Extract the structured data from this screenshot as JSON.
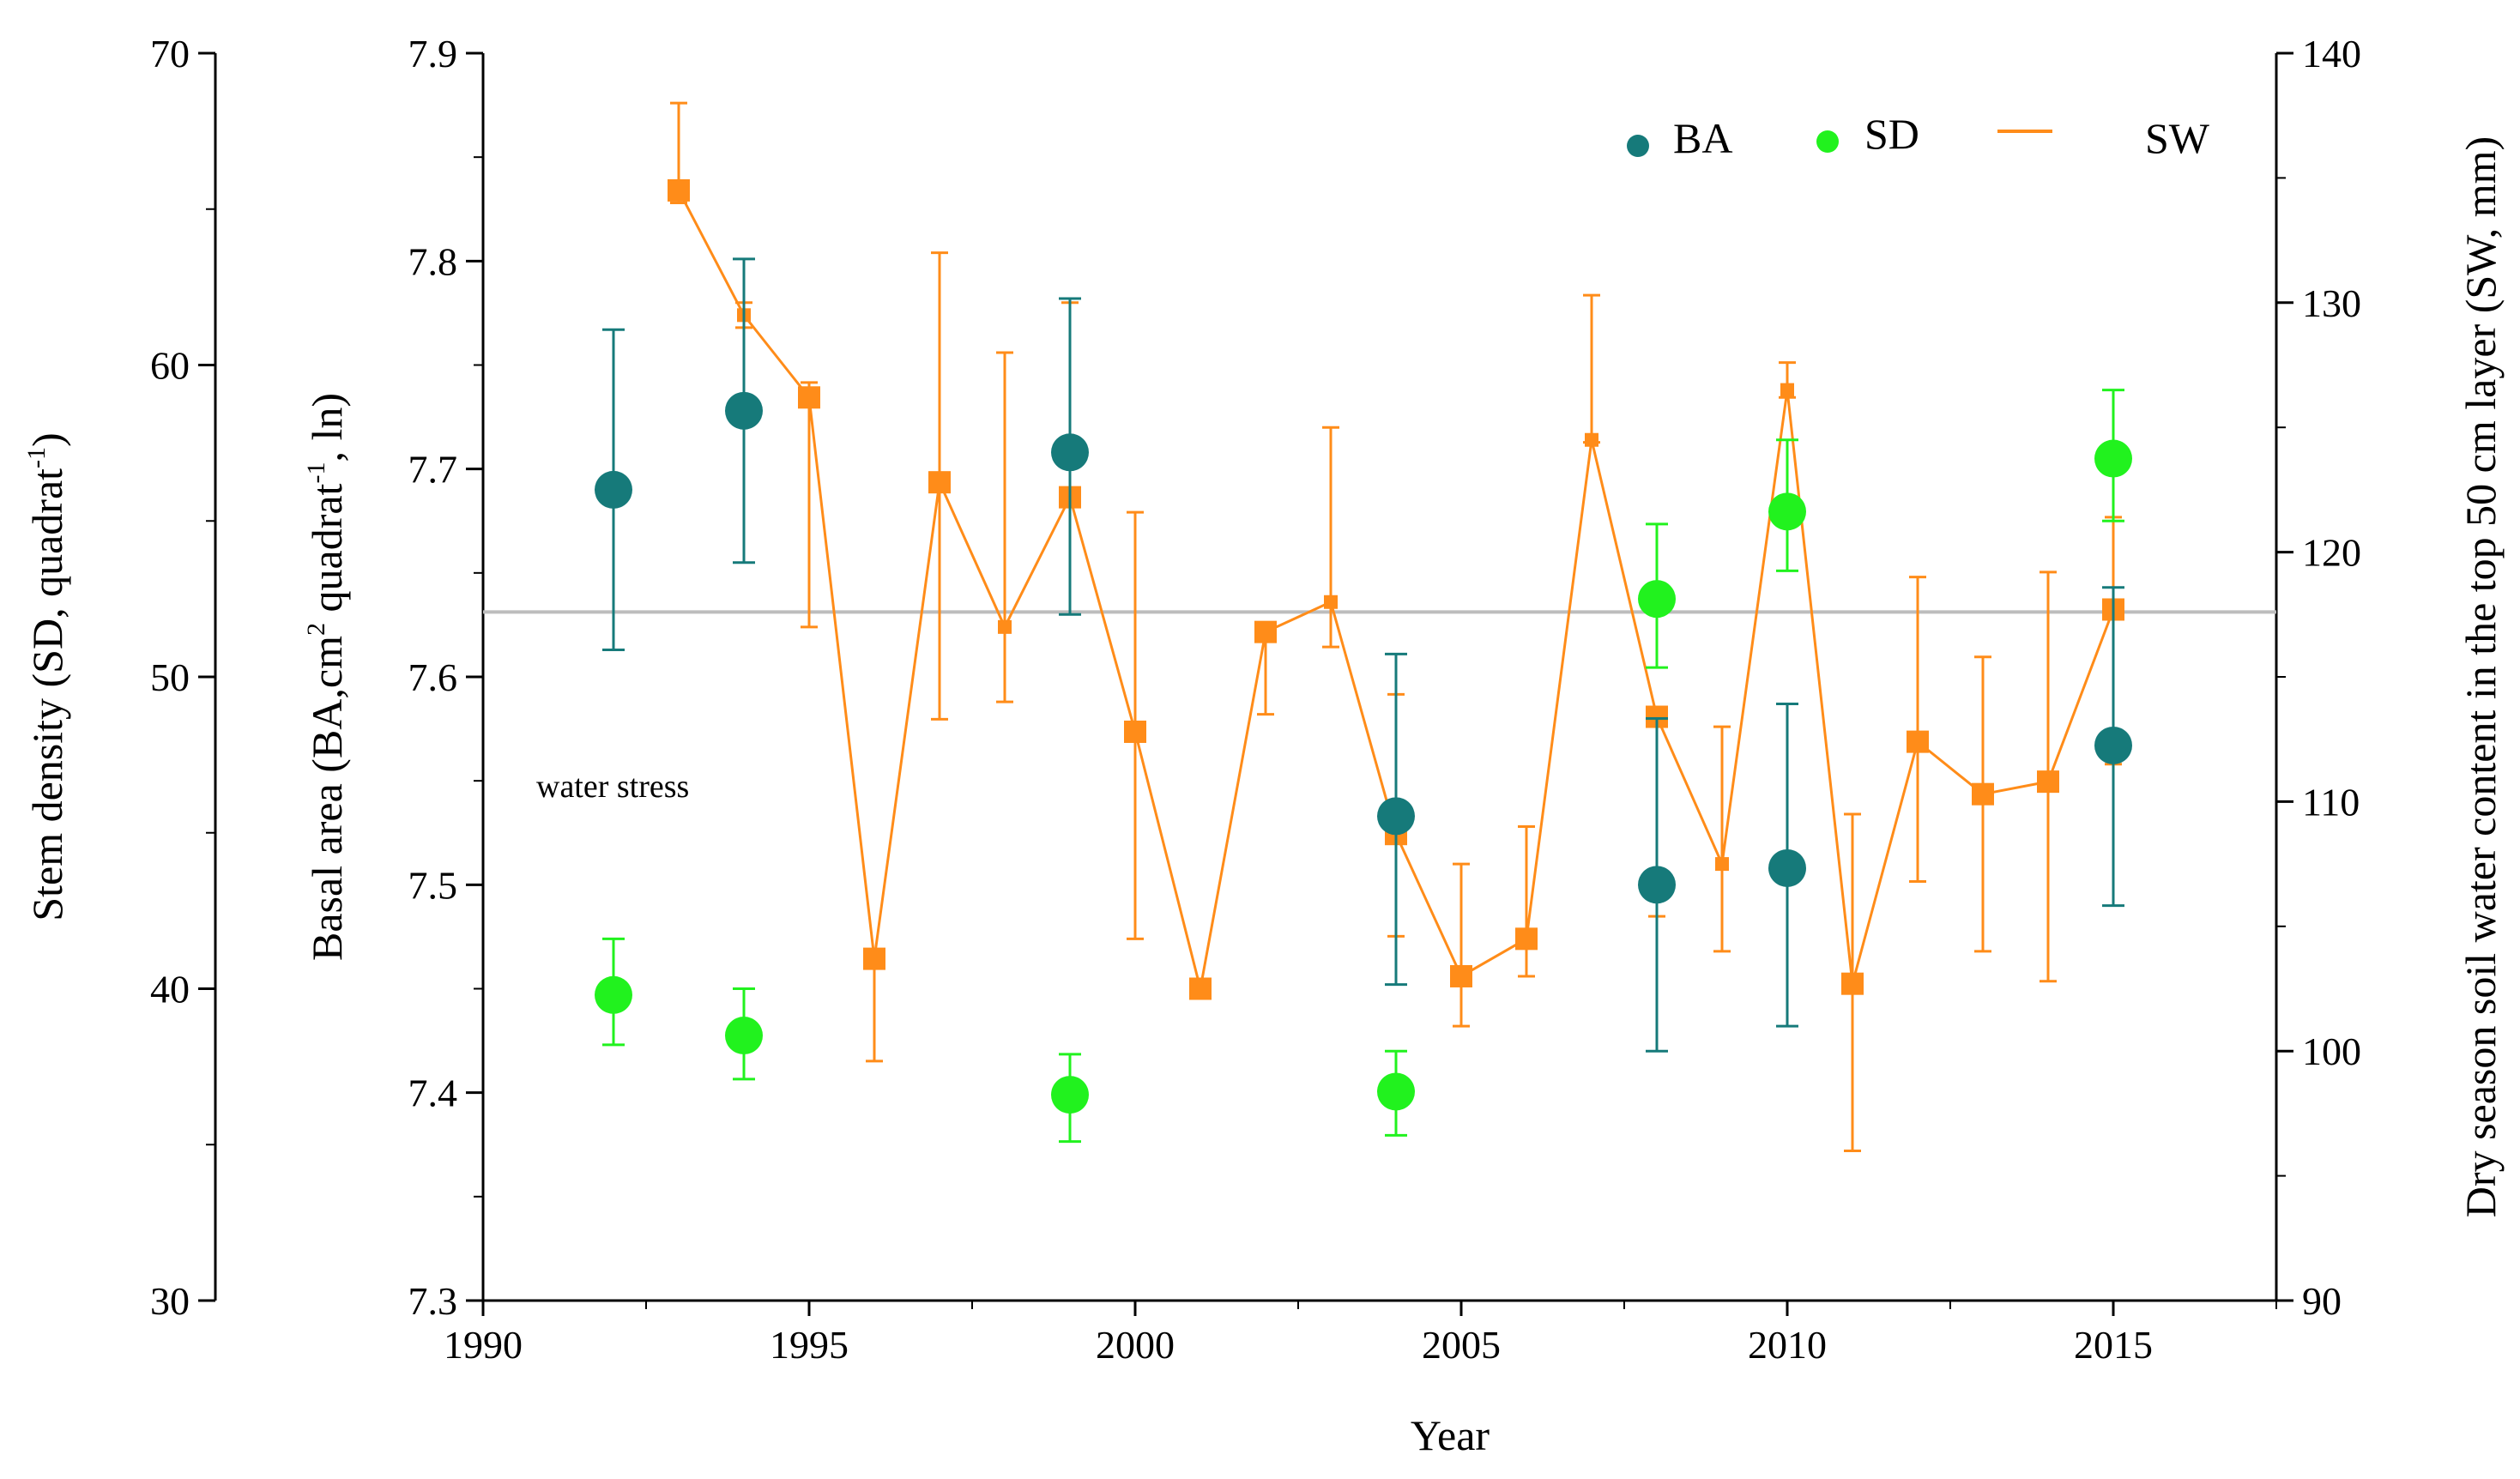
{
  "chart_data": {
    "type": "scatter",
    "title": "",
    "xlabel": "Year",
    "ylabel_left_outer": "Stem density (SD, quadrat",
    "ylabel_left_outer_sup": "-1",
    "ylabel_left_outer_end": ")",
    "ylabel_left_inner": "Basal area (BA,cm",
    "ylabel_left_inner_sup1": "2",
    "ylabel_left_inner_mid": " quadrat",
    "ylabel_left_inner_sup2": "-1",
    "ylabel_left_inner_end": ", ln)",
    "ylabel_right": "Dry season soil water content in the top 50 cm layer (SW, mm)",
    "xlim": [
      1990,
      2017.5
    ],
    "xticks": [
      "1990",
      "1995",
      "2000",
      "2005",
      "2010",
      "2015"
    ],
    "ba_ylim": [
      7.3,
      7.9
    ],
    "ba_ticks": [
      "7.3",
      "7.4",
      "7.5",
      "7.6",
      "7.7",
      "7.8",
      "7.9"
    ],
    "sd_ylim": [
      30,
      70
    ],
    "sd_ticks": [
      "30",
      "40",
      "50",
      "60",
      "70"
    ],
    "sw_ylim": [
      90,
      140
    ],
    "sw_ticks": [
      "90",
      "100",
      "110",
      "120",
      "130",
      "140"
    ],
    "threshold_sw": 117.6,
    "annotation": "water stress",
    "legend": {
      "ba": "BA",
      "sd": "SD",
      "sw": "SW",
      "placement": "top-right"
    },
    "colors": {
      "ba": "#167a7a",
      "sd": "#21f21e",
      "sw": "#ff8c19",
      "threshold": "#bdbdbd",
      "axis": "#000000"
    },
    "series": [
      {
        "name": "BA",
        "axis": "ba",
        "points": [
          {
            "x": 1992,
            "y": 7.69,
            "err_low": 7.613,
            "err_high": 7.767
          },
          {
            "x": 1994,
            "y": 7.728,
            "err_low": 7.655,
            "err_high": 7.801
          },
          {
            "x": 1999,
            "y": 7.708,
            "err_low": 7.63,
            "err_high": 7.782
          },
          {
            "x": 2004,
            "y": 7.533,
            "err_low": 7.452,
            "err_high": 7.611
          },
          {
            "x": 2008,
            "y": 7.5,
            "err_low": 7.42,
            "err_high": 7.58
          },
          {
            "x": 2010,
            "y": 7.508,
            "err_low": 7.432,
            "err_high": 7.587
          },
          {
            "x": 2015,
            "y": 7.567,
            "err_low": 7.49,
            "err_high": 7.643
          }
        ]
      },
      {
        "name": "SD",
        "axis": "sd",
        "points": [
          {
            "x": 1992,
            "y": 39.8,
            "err_low": 38.2,
            "err_high": 41.6
          },
          {
            "x": 1994,
            "y": 38.5,
            "err_low": 37.1,
            "err_high": 40.0
          },
          {
            "x": 1999,
            "y": 36.6,
            "err_low": 35.1,
            "err_high": 37.9
          },
          {
            "x": 2004,
            "y": 36.7,
            "err_low": 35.3,
            "err_high": 38.0
          },
          {
            "x": 2008,
            "y": 52.5,
            "err_low": 50.3,
            "err_high": 54.9
          },
          {
            "x": 2010,
            "y": 55.3,
            "err_low": 53.4,
            "err_high": 57.6
          },
          {
            "x": 2015,
            "y": 57.0,
            "err_low": 55.0,
            "err_high": 59.2
          }
        ]
      },
      {
        "name": "SW",
        "axis": "sw",
        "points": [
          {
            "x": 1993,
            "y": 134.5,
            "err_low": 134.0,
            "err_high": 138.0
          },
          {
            "x": 1994,
            "y": 129.5,
            "err_low": 129.0,
            "err_high": 130.0
          },
          {
            "x": 1995,
            "y": 126.2,
            "err_low": 117.0,
            "err_high": 126.8
          },
          {
            "x": 1996,
            "y": 103.7,
            "err_low": 99.6,
            "err_high": 103.8
          },
          {
            "x": 1997,
            "y": 122.8,
            "err_low": 113.3,
            "err_high": 132.0
          },
          {
            "x": 1998,
            "y": 117.0,
            "err_low": 114.0,
            "err_high": 128.0
          },
          {
            "x": 1999,
            "y": 122.2,
            "err_low": 122.0,
            "err_high": 130.0
          },
          {
            "x": 2000,
            "y": 112.8,
            "err_low": 104.5,
            "err_high": 121.6
          },
          {
            "x": 2001,
            "y": 102.5,
            "err_low": 102.5,
            "err_high": 102.6
          },
          {
            "x": 2002,
            "y": 116.8,
            "err_low": 113.5,
            "err_high": 116.9
          },
          {
            "x": 2003,
            "y": 118.0,
            "err_low": 116.2,
            "err_high": 125.0
          },
          {
            "x": 2004,
            "y": 108.7,
            "err_low": 104.6,
            "err_high": 114.3
          },
          {
            "x": 2005,
            "y": 103.0,
            "err_low": 101.0,
            "err_high": 107.5
          },
          {
            "x": 2006,
            "y": 104.5,
            "err_low": 103.0,
            "err_high": 109.0
          },
          {
            "x": 2007,
            "y": 124.5,
            "err_low": 124.4,
            "err_high": 130.3
          },
          {
            "x": 2008,
            "y": 113.4,
            "err_low": 105.4,
            "err_high": 113.6
          },
          {
            "x": 2009,
            "y": 107.5,
            "err_low": 104.0,
            "err_high": 113.0
          },
          {
            "x": 2010,
            "y": 126.5,
            "err_low": 126.2,
            "err_high": 127.6
          },
          {
            "x": 2011,
            "y": 102.7,
            "err_low": 96.0,
            "err_high": 109.5
          },
          {
            "x": 2012,
            "y": 112.4,
            "err_low": 106.8,
            "err_high": 119.0
          },
          {
            "x": 2013,
            "y": 110.3,
            "err_low": 104.0,
            "err_high": 115.8
          },
          {
            "x": 2014,
            "y": 110.8,
            "err_low": 102.8,
            "err_high": 119.2
          },
          {
            "x": 2015,
            "y": 117.7,
            "err_low": 111.5,
            "err_high": 121.4
          }
        ]
      }
    ]
  }
}
